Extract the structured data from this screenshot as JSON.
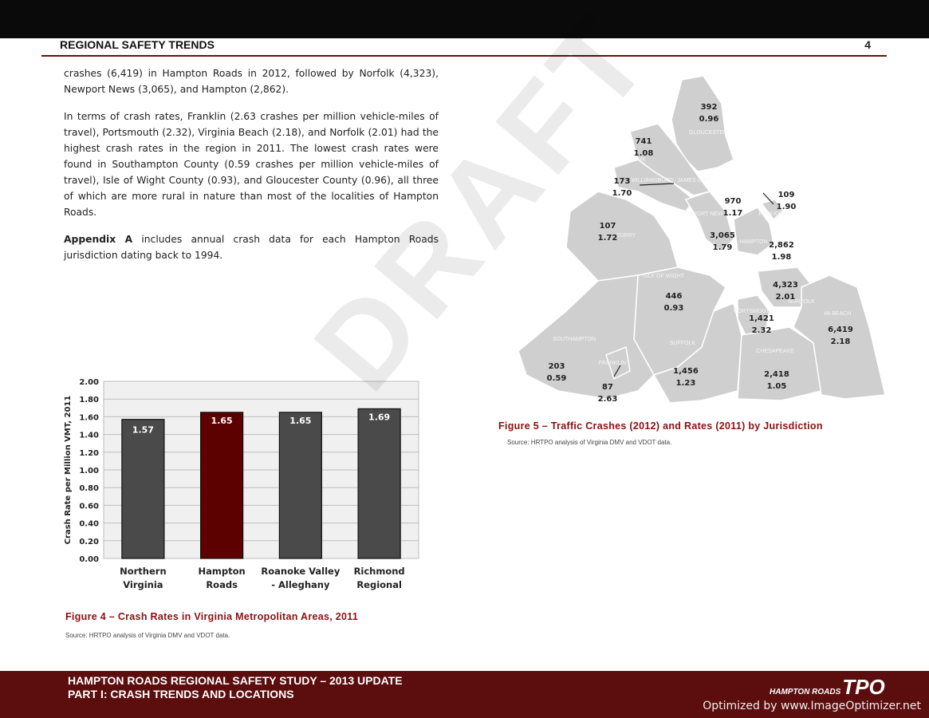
{
  "header": {
    "section_title": "REGIONAL SAFETY TRENDS",
    "page_number": "4"
  },
  "body": {
    "para1": "crashes (6,419) in Hampton Roads in 2012, followed by Norfolk (4,323), Newport News (3,065), and Hampton (2,862).",
    "para2": "In terms of crash rates, Franklin (2.63 crashes per million vehicle-miles of travel), Portsmouth (2.32), Virginia Beach (2.18), and Norfolk (2.01) had the highest crash rates in the region in 2011.  The lowest crash rates were found in Southampton County (0.59 crashes per million vehicle-miles of travel), Isle of Wight County (0.93), and Gloucester County (0.96), all three of which are more rural in nature than most of the localities of Hampton Roads.",
    "para3_bold": "Appendix A",
    "para3_rest": " includes annual crash data for each Hampton Roads jurisdiction dating back to 1994."
  },
  "watermark": "DRAFT",
  "figure4": {
    "caption": "Figure 4 – Crash Rates in Virginia Metropolitan Areas, 2011",
    "source": "Source:  HRTPO analysis of Virginia DMV and VDOT data."
  },
  "figure5": {
    "caption": "Figure 5 – Traffic Crashes (2012) and Rates (2011) by Jurisdiction",
    "source": "Source:  HRTPO analysis of Virginia DMV and VDOT data."
  },
  "chart_data": {
    "type": "bar",
    "categories": [
      "Northern Virginia",
      "Hampton Roads",
      "Roanoke Valley - Alleghany",
      "Richmond Regional"
    ],
    "category_lines": [
      [
        "Northern",
        "Virginia"
      ],
      [
        "Hampton",
        "Roads"
      ],
      [
        "Roanoke Valley",
        "- Alleghany"
      ],
      [
        "Richmond",
        "Regional"
      ]
    ],
    "values": [
      1.57,
      1.65,
      1.65,
      1.69
    ],
    "value_labels": [
      "1.57",
      "1.65",
      "1.65",
      "1.69"
    ],
    "ylabel": "Crash Rate per Million VMT, 2011",
    "ylim": [
      0,
      2.0
    ],
    "yticks": [
      "0.00",
      "0.20",
      "0.40",
      "0.60",
      "0.80",
      "1.00",
      "1.20",
      "1.40",
      "1.60",
      "1.80",
      "2.00"
    ],
    "bar_colors": [
      "#4a4a4a",
      "#5c0000",
      "#4a4a4a",
      "#4a4a4a"
    ],
    "grid": true
  },
  "map": {
    "regions": [
      "GLOUCESTER",
      "YORK",
      "WILLIAMSBURG",
      "JAMES CITY",
      "POQUOSON",
      "NEWPORT NEWS",
      "HAMPTON",
      "SURRY",
      "ISLE OF WIGHT",
      "NORFOLK",
      "VA BEACH",
      "PORTSMOUTH",
      "SOUTHAMPTON",
      "FRANKLIN",
      "SUFFOLK",
      "CHESAPEAKE"
    ],
    "labels": [
      {
        "crashes": "392",
        "rate": "0.96"
      },
      {
        "crashes": "741",
        "rate": "1.08"
      },
      {
        "crashes": "173",
        "rate": "1.70"
      },
      {
        "crashes": "970",
        "rate": "1.17"
      },
      {
        "crashes": "109",
        "rate": "1.90"
      },
      {
        "crashes": "107",
        "rate": "1.72"
      },
      {
        "crashes": "3,065",
        "rate": "1.79"
      },
      {
        "crashes": "2,862",
        "rate": "1.98"
      },
      {
        "crashes": "4,323",
        "rate": "2.01"
      },
      {
        "crashes": "446",
        "rate": "0.93"
      },
      {
        "crashes": "1,421",
        "rate": "2.32"
      },
      {
        "crashes": "6,419",
        "rate": "2.18"
      },
      {
        "crashes": "203",
        "rate": "0.59"
      },
      {
        "crashes": "1,456",
        "rate": "1.23"
      },
      {
        "crashes": "2,418",
        "rate": "1.05"
      },
      {
        "crashes": "87",
        "rate": "2.63"
      }
    ]
  },
  "footer": {
    "line1": "HAMPTON ROADS REGIONAL SAFETY STUDY – 2013 UPDATE",
    "line2": "PART I: CRASH TRENDS AND LOCATIONS",
    "logo_small": "HAMPTON ROADS",
    "logo": "TPO",
    "optimized": "Optimized by www.ImageOptimizer.net"
  }
}
